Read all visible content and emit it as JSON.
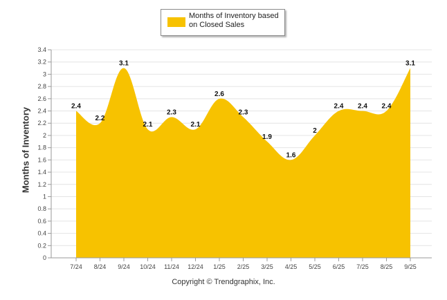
{
  "chart_data": {
    "type": "area",
    "title": "",
    "xlabel": "",
    "ylabel": "Months of Inventory",
    "legend": {
      "label": "Months of Inventory based on Closed Sales",
      "position": "top-center"
    },
    "categories": [
      "7/24",
      "8/24",
      "9/24",
      "10/24",
      "11/24",
      "12/24",
      "1/25",
      "2/25",
      "3/25",
      "4/25",
      "5/25",
      "6/25",
      "7/25",
      "8/25",
      "9/25"
    ],
    "series": [
      {
        "name": "Months of Inventory based on Closed Sales",
        "values": [
          2.4,
          2.2,
          3.1,
          2.1,
          2.3,
          2.1,
          2.6,
          2.3,
          1.9,
          1.6,
          2,
          2.4,
          2.4,
          2.4,
          3.1
        ],
        "color": "#f7c200"
      }
    ],
    "data_labels": [
      "2.4",
      "2.2",
      "3.1",
      "2.1",
      "2.3",
      "2.1",
      "2.6",
      "2.3",
      "1.9",
      "1.6",
      "2",
      "2.4",
      "2.4",
      "2.4",
      "3.1"
    ],
    "ylim": [
      0,
      3.4
    ],
    "yticks": [
      "0",
      "0.2",
      "0.4",
      "0.6",
      "0.8",
      "1",
      "1.2",
      "1.4",
      "1.6",
      "1.8",
      "2",
      "2.2",
      "2.4",
      "2.6",
      "2.8",
      "3",
      "3.2",
      "3.4"
    ],
    "grid": true
  },
  "footer": {
    "copyright": "Copyright © Trendgraphix, Inc."
  }
}
